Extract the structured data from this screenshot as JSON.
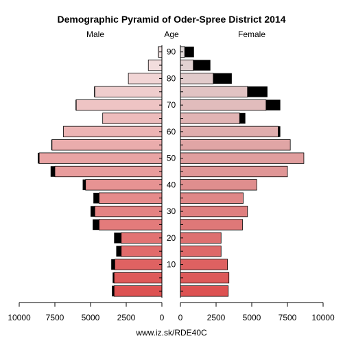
{
  "chart_data": {
    "type": "bar",
    "title": "Demographic Pyramid of Oder-Spree District 2014",
    "male_label": "Male",
    "age_label": "Age",
    "female_label": "Female",
    "xlabel": "www.iz.sk/RDE40C",
    "xlim": [
      0,
      10000
    ],
    "x_ticks_left": [
      "10000",
      "7500",
      "5000",
      "2500",
      "0"
    ],
    "x_ticks_right": [
      "0",
      "2500",
      "5000",
      "7500",
      "10000"
    ],
    "age_ticks": [
      "10",
      "20",
      "30",
      "40",
      "50",
      "60",
      "70",
      "80",
      "90"
    ],
    "age_groups": [
      "0-4",
      "5-9",
      "10-14",
      "15-19",
      "20-24",
      "25-29",
      "30-34",
      "35-39",
      "40-44",
      "45-49",
      "50-54",
      "55-59",
      "60-64",
      "65-69",
      "70-74",
      "75-79",
      "80-84",
      "85-89",
      "90+"
    ],
    "series": [
      {
        "values": [
          3350,
          3350,
          3300,
          2850,
          2850,
          4400,
          4700,
          4400,
          5350,
          7500,
          8600,
          7700,
          6900,
          4150,
          6000,
          4700,
          2350,
          950,
          250
        ]
      },
      {
        "values": [
          3500,
          3450,
          3550,
          3200,
          3350,
          4850,
          5000,
          4800,
          5550,
          7800,
          8700,
          7750,
          6900,
          4150,
          6050,
          4750,
          2350,
          950,
          280
        ]
      },
      {
        "values": [
          3350,
          3400,
          3300,
          2850,
          2850,
          4350,
          4700,
          4400,
          5350,
          7500,
          8650,
          7700,
          6850,
          4150,
          6000,
          4700,
          2300,
          900,
          300
        ]
      },
      {
        "values": [
          3350,
          3400,
          3300,
          2850,
          2850,
          4350,
          4700,
          4400,
          5350,
          7500,
          8650,
          7700,
          7000,
          4550,
          7000,
          6100,
          3600,
          2100,
          950
        ]
      }
    ]
  }
}
